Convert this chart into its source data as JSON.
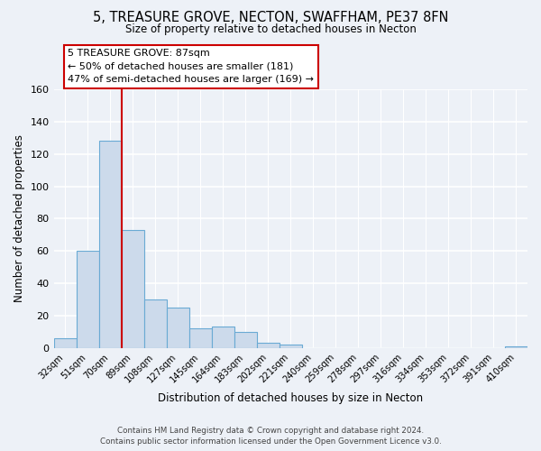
{
  "title": "5, TREASURE GROVE, NECTON, SWAFFHAM, PE37 8FN",
  "subtitle": "Size of property relative to detached houses in Necton",
  "xlabel": "Distribution of detached houses by size in Necton",
  "ylabel": "Number of detached properties",
  "bin_labels": [
    "32sqm",
    "51sqm",
    "70sqm",
    "89sqm",
    "108sqm",
    "127sqm",
    "145sqm",
    "164sqm",
    "183sqm",
    "202sqm",
    "221sqm",
    "240sqm",
    "259sqm",
    "278sqm",
    "297sqm",
    "316sqm",
    "334sqm",
    "353sqm",
    "372sqm",
    "391sqm",
    "410sqm"
  ],
  "bar_values": [
    6,
    60,
    128,
    73,
    30,
    25,
    12,
    13,
    10,
    3,
    2,
    0,
    0,
    0,
    0,
    0,
    0,
    0,
    0,
    0,
    1
  ],
  "bar_color": "#ccdaeb",
  "bar_edge_color": "#6aaad4",
  "vline_color": "#cc0000",
  "ylim": [
    0,
    160
  ],
  "yticks": [
    0,
    20,
    40,
    60,
    80,
    100,
    120,
    140,
    160
  ],
  "annotation_title": "5 TREASURE GROVE: 87sqm",
  "annotation_line1": "← 50% of detached houses are smaller (181)",
  "annotation_line2": "47% of semi-detached houses are larger (169) →",
  "annotation_box_edge": "#cc0000",
  "footer_line1": "Contains HM Land Registry data © Crown copyright and database right 2024.",
  "footer_line2": "Contains public sector information licensed under the Open Government Licence v3.0.",
  "background_color": "#edf1f7",
  "grid_color": "#ffffff",
  "title_fontsize": 10.5,
  "subtitle_fontsize": 8.5
}
